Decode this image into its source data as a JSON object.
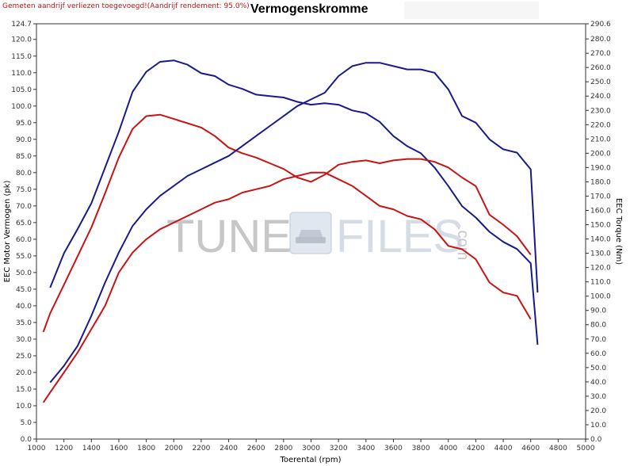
{
  "header": {
    "note": "Gemeten aandrijf verliezen toegevoegd!(Aandrijf rendement: 95.0%)",
    "title": "Vermogenskromme"
  },
  "watermark": {
    "left_text": "TUNE",
    "right_text": "FILES",
    "suffix": ".com",
    "icon": "car-icon"
  },
  "colors": {
    "blue": "#1a1a8c",
    "red": "#c81414",
    "blue_faded": "#6e6ec0",
    "red_faded": "#e27070"
  },
  "chart_data": {
    "type": "line",
    "title": "Vermogenskromme",
    "xlabel": "Toerental (rpm)",
    "ylabel_left": "EEC Motor Vermogen (pk)",
    "ylabel_right": "EEC Torque (Nm)",
    "xlim": [
      1000,
      5000
    ],
    "ylim_left": [
      0,
      124.7
    ],
    "ylim_right": [
      0,
      290.6
    ],
    "grid": false,
    "x_ticks": [
      "1000",
      "1200",
      "1400",
      "1600",
      "1800",
      "2000",
      "2200",
      "2400",
      "2600",
      "2800",
      "3000",
      "3200",
      "3400",
      "3600",
      "3800",
      "4000",
      "4200",
      "4400",
      "4600",
      "4800",
      "5000"
    ],
    "y_left_ticks": [
      "0.0",
      "5.0",
      "10.0",
      "15.0",
      "20.0",
      "25.0",
      "30.0",
      "35.0",
      "40.0",
      "45.0",
      "50.0",
      "55.0",
      "60.0",
      "65.0",
      "70.0",
      "75.0",
      "80.0",
      "85.0",
      "90.0",
      "95.0",
      "100.0",
      "105.0",
      "110.0",
      "115.0",
      "120.0",
      "124.7"
    ],
    "y_right_ticks": [
      "0.0",
      "10.0",
      "20.0",
      "30.0",
      "40.0",
      "50.0",
      "60.0",
      "70.0",
      "80.0",
      "90.0",
      "100.0",
      "110.0",
      "120.0",
      "130.0",
      "140.0",
      "150.0",
      "160.0",
      "170.0",
      "180.0",
      "190.0",
      "200.0",
      "210.0",
      "220.0",
      "230.0",
      "240.0",
      "250.0",
      "260.0",
      "270.0",
      "280.0",
      "290.6"
    ],
    "series": [
      {
        "axis": "right",
        "color": "blue",
        "x": [
          1100,
          1200,
          1300,
          1400,
          1500,
          1600,
          1700,
          1800,
          1900,
          2000,
          2100,
          2200,
          2300,
          2400,
          2500,
          2600,
          2700,
          2800,
          2900,
          3000,
          3100,
          3200,
          3300,
          3400,
          3500,
          3600,
          3700,
          3800,
          3900,
          4000,
          4100,
          4200,
          4300,
          4400,
          4500,
          4600,
          4650
        ],
        "y": [
          106,
          130,
          147,
          165,
          190,
          215,
          243,
          257,
          264,
          265,
          262,
          256,
          254,
          248,
          245,
          241,
          240,
          239,
          236,
          234,
          235,
          234,
          230,
          228,
          222,
          212,
          205,
          200,
          190,
          177,
          163,
          155,
          145,
          138,
          133,
          123,
          66
        ]
      },
      {
        "axis": "right",
        "color": "red",
        "x": [
          1050,
          1100,
          1200,
          1300,
          1400,
          1500,
          1600,
          1700,
          1800,
          1900,
          2000,
          2100,
          2200,
          2300,
          2400,
          2500,
          2600,
          2700,
          2800,
          2900,
          3000,
          3100,
          3200,
          3300,
          3400,
          3500,
          3600,
          3700,
          3800,
          3900,
          4000,
          4100,
          4200,
          4300,
          4400,
          4500,
          4600
        ],
        "y": [
          75,
          88,
          108,
          128,
          148,
          172,
          197,
          217,
          226,
          227,
          224,
          221,
          218,
          212,
          204,
          200,
          197,
          193,
          189,
          183,
          180,
          185,
          192,
          194,
          195,
          193,
          195,
          196,
          196,
          194,
          190,
          183,
          177,
          157,
          150,
          142,
          129
        ]
      },
      {
        "axis": "left",
        "color": "blue",
        "x": [
          1100,
          1200,
          1300,
          1400,
          1500,
          1600,
          1700,
          1800,
          1900,
          2000,
          2100,
          2200,
          2300,
          2400,
          2500,
          2600,
          2700,
          2800,
          2900,
          3000,
          3100,
          3200,
          3300,
          3400,
          3500,
          3600,
          3700,
          3800,
          3900,
          4000,
          4100,
          4200,
          4300,
          4400,
          4500,
          4600,
          4650
        ],
        "y": [
          17,
          22,
          28,
          37,
          47,
          56,
          64,
          69,
          73,
          76,
          79,
          81,
          83,
          85,
          88,
          91,
          94,
          97,
          100,
          102,
          104,
          109,
          112,
          113,
          113,
          112,
          111,
          111,
          110,
          105,
          97,
          95,
          90,
          87,
          86,
          81,
          44
        ]
      },
      {
        "axis": "left",
        "color": "red",
        "x": [
          1050,
          1100,
          1200,
          1300,
          1400,
          1500,
          1600,
          1700,
          1800,
          1900,
          2000,
          2100,
          2200,
          2300,
          2400,
          2500,
          2600,
          2700,
          2800,
          2900,
          3000,
          3100,
          3200,
          3300,
          3400,
          3500,
          3600,
          3700,
          3800,
          3900,
          4000,
          4100,
          4200,
          4300,
          4400,
          4500,
          4600
        ],
        "y": [
          11,
          14,
          20,
          26,
          33,
          40,
          50,
          56,
          60,
          63,
          65,
          67,
          69,
          71,
          72,
          74,
          75,
          76,
          78,
          79,
          80,
          80,
          78,
          76,
          73,
          70,
          69,
          67,
          66,
          63,
          58,
          57,
          54,
          47,
          44,
          43,
          36
        ]
      }
    ]
  }
}
